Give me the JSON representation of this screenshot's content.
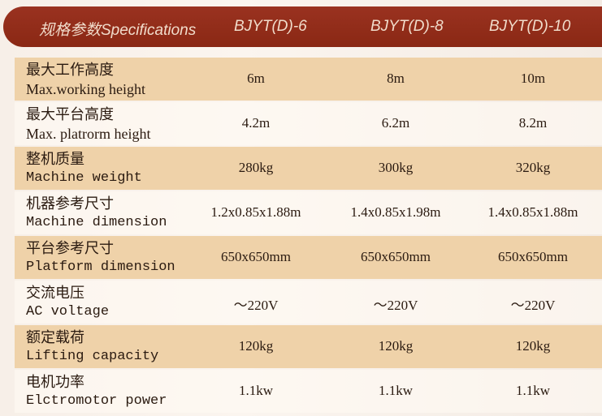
{
  "header": {
    "spec_label": "规格参数Specifications",
    "models": [
      "BJYT(D)-6",
      "BJYT(D)-8",
      "BJYT(D)-10"
    ]
  },
  "colors": {
    "header_bg": "#8e2a16",
    "row_tan": "#efd2a9"
  },
  "rows": [
    {
      "zh": "最大工作高度",
      "en": "Max.working height",
      "values": [
        "6m",
        "8m",
        "10m"
      ]
    },
    {
      "zh": "最大平台高度",
      "en": "Max. platrorm height",
      "values": [
        "4.2m",
        "6.2m",
        "8.2m"
      ]
    },
    {
      "zh": "整机质量",
      "en": "Machine weight",
      "values": [
        "280kg",
        "300kg",
        "320kg"
      ]
    },
    {
      "zh": "机器参考尺寸",
      "en": "Machine dimension",
      "values": [
        "1.2x0.85x1.88m",
        "1.4x0.85x1.98m",
        "1.4x0.85x1.88m"
      ]
    },
    {
      "zh": "平台参考尺寸",
      "en": "Platform dimension",
      "values": [
        "650x650mm",
        "650x650mm",
        "650x650mm"
      ]
    },
    {
      "zh": "交流电压",
      "en": "AC voltage",
      "values": [
        "～220V",
        "～220V",
        "～220V"
      ]
    },
    {
      "zh": "额定载荷",
      "en": "Lifting capacity",
      "values": [
        "120kg",
        "120kg",
        "120kg"
      ]
    },
    {
      "zh": "电机功率",
      "en": "Elctromotor power",
      "values": [
        "1.1kw",
        "1.1kw",
        "1.1kw"
      ]
    }
  ]
}
